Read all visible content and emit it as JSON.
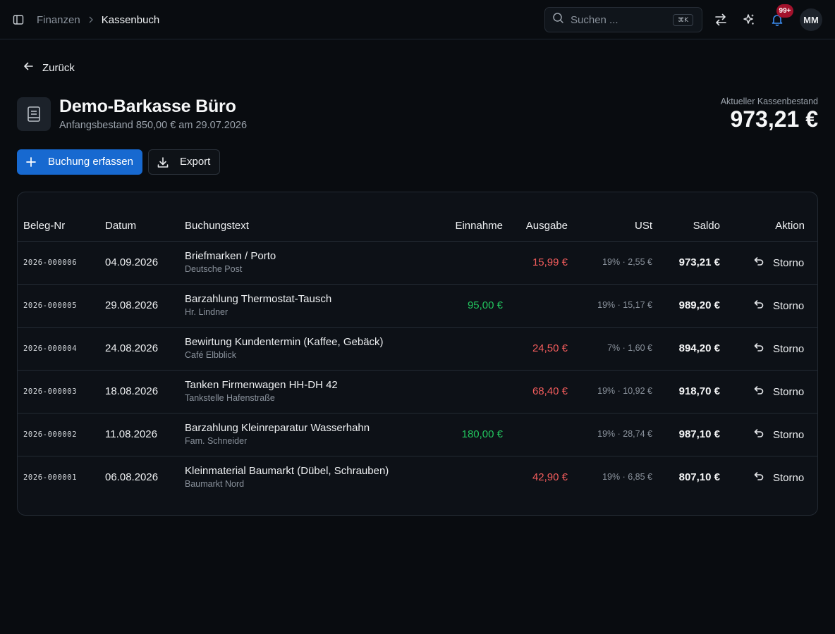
{
  "topbar": {
    "breadcrumb": {
      "parent": "Finanzen",
      "current": "Kassenbuch"
    },
    "search": {
      "placeholder": "Suchen ...",
      "shortcut": "⌘K"
    },
    "notifications": {
      "badge": "99+"
    },
    "user": {
      "initials": "MM"
    },
    "icons": [
      "sidebar-toggle-icon",
      "transfer-icon",
      "sparkles-icon",
      "bell-icon"
    ]
  },
  "back": {
    "label": "Zurück"
  },
  "header": {
    "title": "Demo-Barkasse Büro",
    "subtitle": "Anfangsbestand 850,00 € am 29.07.2026",
    "balance_label": "Aktueller Kassenbestand",
    "balance_value": "973,21 €"
  },
  "actions": {
    "new_entry": "Buchung erfassen",
    "export": "Export"
  },
  "colors": {
    "accent": "#1769d0",
    "income": "#22c55e",
    "expense": "#f25c5c",
    "badge": "#a3122c"
  },
  "table": {
    "headers": {
      "beleg": "Beleg-Nr",
      "datum": "Datum",
      "text": "Buchungstext",
      "einnahme": "Einnahme",
      "ausgabe": "Ausgabe",
      "ust": "USt",
      "saldo": "Saldo",
      "aktion": "Aktion"
    },
    "rows": [
      {
        "beleg": "2026-000006",
        "datum": "04.09.2026",
        "text": "Briefmarken / Porto",
        "sub": "Deutsche Post",
        "einnahme": "",
        "ausgabe": "15,99 €",
        "ust": "19% · 2,55 €",
        "saldo": "973,21 €",
        "aktion": "Storno"
      },
      {
        "beleg": "2026-000005",
        "datum": "29.08.2026",
        "text": "Barzahlung Thermostat-Tausch",
        "sub": "Hr. Lindner",
        "einnahme": "95,00 €",
        "ausgabe": "",
        "ust": "19% · 15,17 €",
        "saldo": "989,20 €",
        "aktion": "Storno"
      },
      {
        "beleg": "2026-000004",
        "datum": "24.08.2026",
        "text": "Bewirtung Kundentermin (Kaffee, Gebäck)",
        "sub": "Café Elbblick",
        "einnahme": "",
        "ausgabe": "24,50 €",
        "ust": "7% · 1,60 €",
        "saldo": "894,20 €",
        "aktion": "Storno"
      },
      {
        "beleg": "2026-000003",
        "datum": "18.08.2026",
        "text": "Tanken Firmenwagen HH-DH 42",
        "sub": "Tankstelle Hafenstraße",
        "einnahme": "",
        "ausgabe": "68,40 €",
        "ust": "19% · 10,92 €",
        "saldo": "918,70 €",
        "aktion": "Storno"
      },
      {
        "beleg": "2026-000002",
        "datum": "11.08.2026",
        "text": "Barzahlung Kleinreparatur Wasserhahn",
        "sub": "Fam. Schneider",
        "einnahme": "180,00 €",
        "ausgabe": "",
        "ust": "19% · 28,74 €",
        "saldo": "987,10 €",
        "aktion": "Storno"
      },
      {
        "beleg": "2026-000001",
        "datum": "06.08.2026",
        "text": "Kleinmaterial Baumarkt (Dübel, Schrauben)",
        "sub": "Baumarkt Nord",
        "einnahme": "",
        "ausgabe": "42,90 €",
        "ust": "19% · 6,85 €",
        "saldo": "807,10 €",
        "aktion": "Storno"
      }
    ]
  }
}
